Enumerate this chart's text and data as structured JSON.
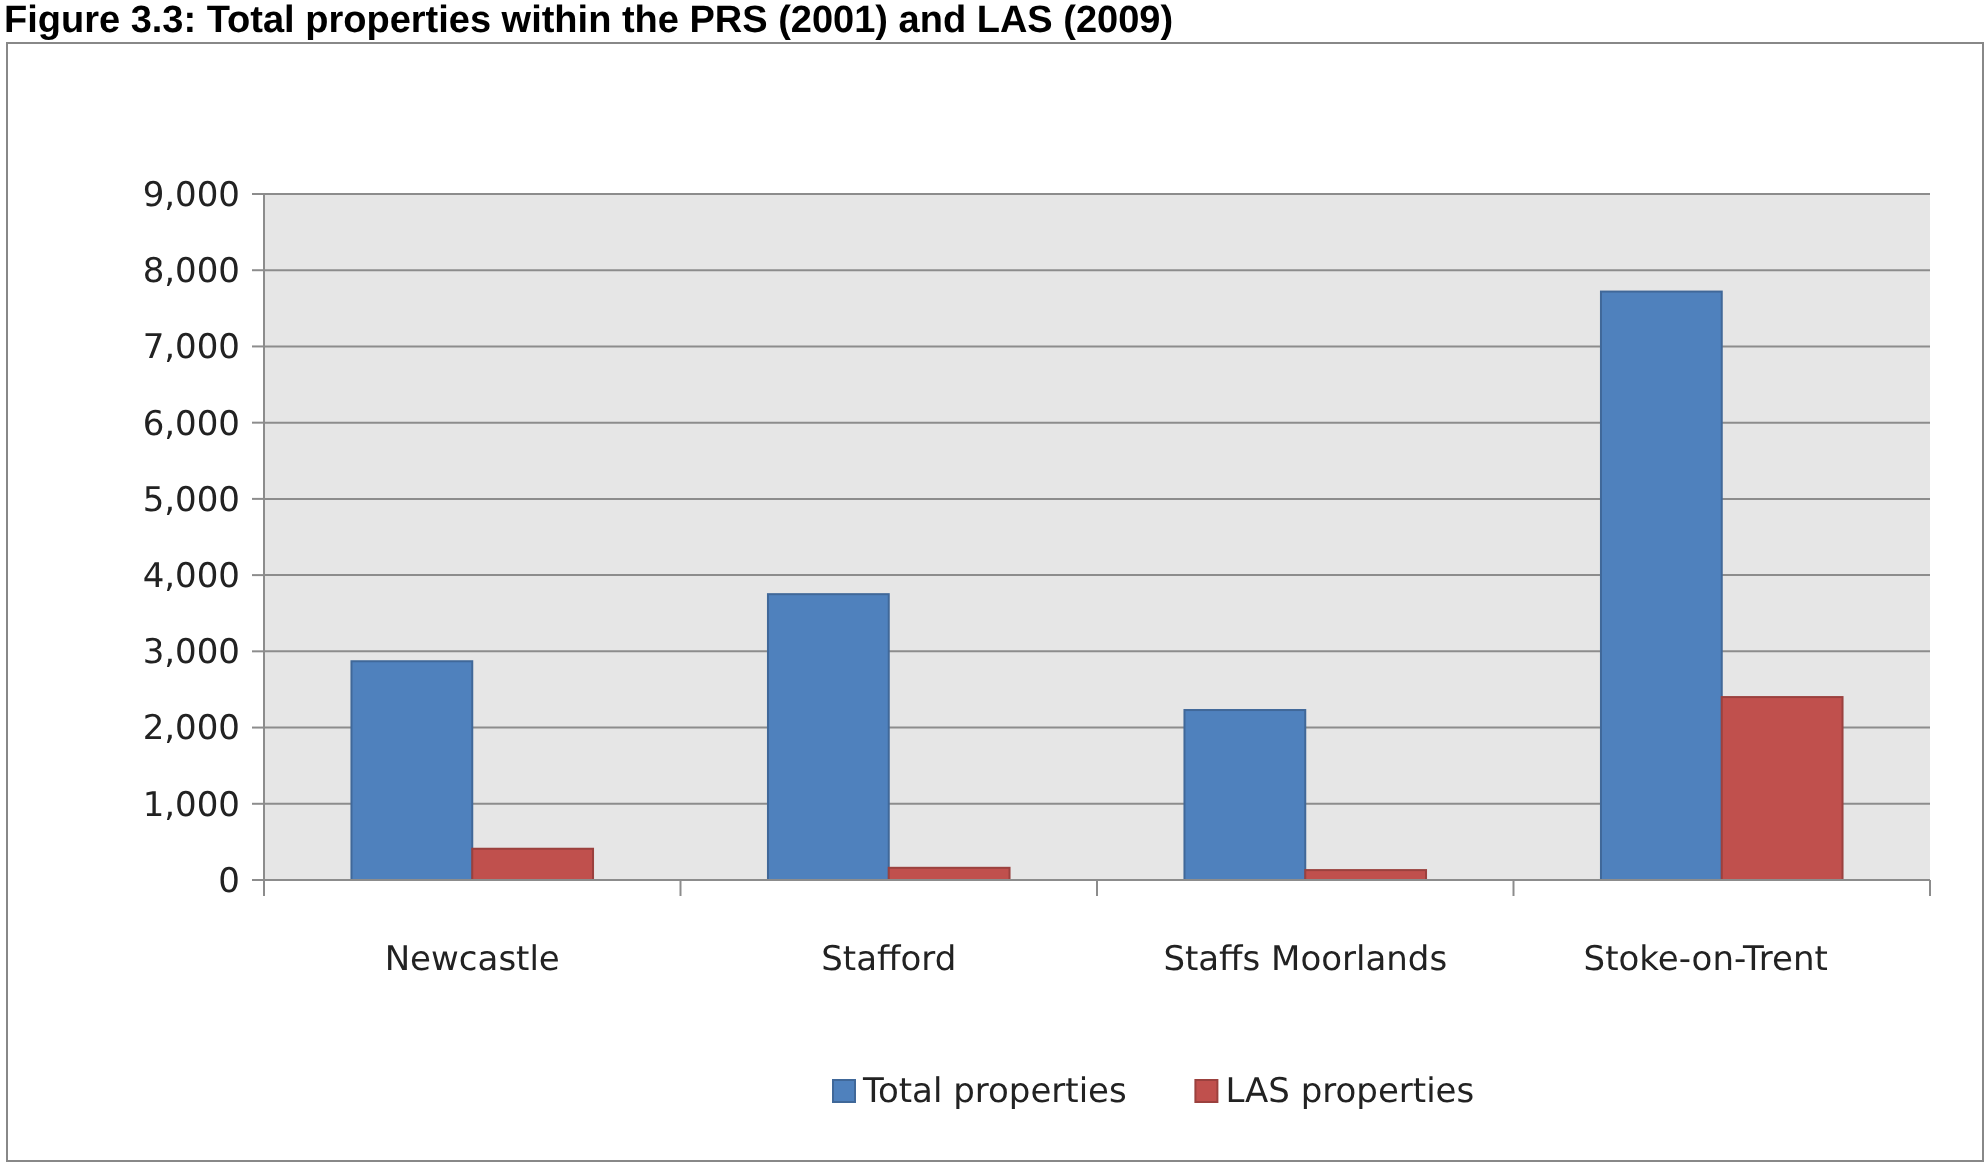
{
  "chart_data": {
    "type": "bar",
    "title": "Figure 3.3: Total properties within the PRS (2001) and LAS (2009)",
    "categories": [
      "Newcastle",
      "Stafford",
      "Staffs Moorlands",
      "Stoke-on-Trent"
    ],
    "series": [
      {
        "name": "Total properties",
        "color": "#4f81bd",
        "values": [
          2870,
          3750,
          2230,
          7720
        ]
      },
      {
        "name": "LAS properties",
        "color": "#c0504d",
        "values": [
          410,
          160,
          130,
          2400
        ]
      }
    ],
    "ylim": [
      0,
      9000
    ],
    "yticks": [
      {
        "value": 0,
        "label": "0"
      },
      {
        "value": 1000,
        "label": "1,000"
      },
      {
        "value": 2000,
        "label": "2,000"
      },
      {
        "value": 3000,
        "label": "3,000"
      },
      {
        "value": 4000,
        "label": "4,000"
      },
      {
        "value": 5000,
        "label": "5,000"
      },
      {
        "value": 6000,
        "label": "6,000"
      },
      {
        "value": 7000,
        "label": "7,000"
      },
      {
        "value": 8000,
        "label": "8,000"
      },
      {
        "value": 9000,
        "label": "9,000"
      }
    ],
    "grid": "y",
    "legend": "bottom"
  }
}
